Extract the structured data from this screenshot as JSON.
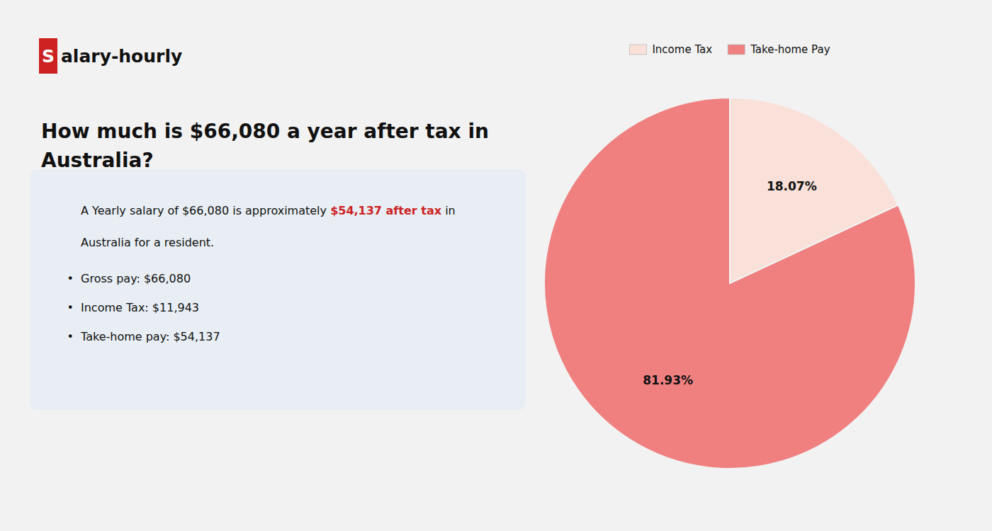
{
  "chart_data": {
    "type": "pie",
    "title": "How much is $66,080 a year after tax in\nAustralia?",
    "categories": [
      "Income Tax",
      "Take-home Pay"
    ],
    "values": [
      18.07,
      81.93
    ],
    "value_labels": [
      "18.07%",
      "81.93%"
    ],
    "colors": [
      "#f9e0d8",
      "#f08080"
    ],
    "data_labels": true,
    "legend": "top",
    "annotations": [
      "S",
      "alary-hourly",
      "A Yearly salary of $66,080 is approximately ",
      "$54,137 after tax",
      " in",
      "Australia for a resident.",
      "•",
      "Gross pay: $66,080",
      "Income Tax: $11,943",
      "Take-home pay: $54,137"
    ]
  }
}
